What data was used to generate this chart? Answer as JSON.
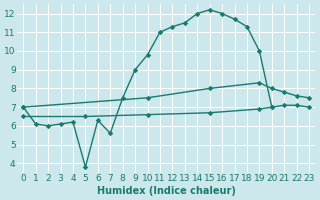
{
  "line1_x": [
    0,
    1,
    2,
    3,
    4,
    5,
    6,
    7,
    8,
    9,
    10,
    11,
    12,
    13,
    14,
    15,
    16,
    17,
    18,
    19,
    20
  ],
  "line1_y": [
    7.0,
    6.1,
    6.0,
    6.1,
    6.2,
    3.8,
    6.3,
    5.6,
    7.5,
    9.0,
    9.8,
    11.0,
    11.3,
    11.5,
    12.0,
    12.2,
    12.0,
    11.7,
    11.3,
    10.0,
    7.0
  ],
  "line2_x": [
    0,
    10,
    15,
    19,
    20,
    21,
    22,
    23
  ],
  "line2_y": [
    7.0,
    7.5,
    8.0,
    8.3,
    8.0,
    7.8,
    7.6,
    7.5
  ],
  "line3_x": [
    0,
    5,
    10,
    15,
    19,
    20,
    21,
    22,
    23
  ],
  "line3_y": [
    6.5,
    6.5,
    6.6,
    6.7,
    6.9,
    7.0,
    7.1,
    7.1,
    7.0
  ],
  "line_color": "#1a7a6e",
  "bg_color": "#cce8ec",
  "grid_color": "#ffffff",
  "xlabel": "Humidex (Indice chaleur)",
  "ylim": [
    3.5,
    12.5
  ],
  "xlim": [
    -0.5,
    23.5
  ],
  "yticks": [
    4,
    5,
    6,
    7,
    8,
    9,
    10,
    11,
    12
  ],
  "xticks": [
    0,
    1,
    2,
    3,
    4,
    5,
    6,
    7,
    8,
    9,
    10,
    11,
    12,
    13,
    14,
    15,
    16,
    17,
    18,
    19,
    20,
    21,
    22,
    23
  ],
  "marker": "D",
  "markersize": 2.8,
  "linewidth": 1.0,
  "font_size": 6.5
}
